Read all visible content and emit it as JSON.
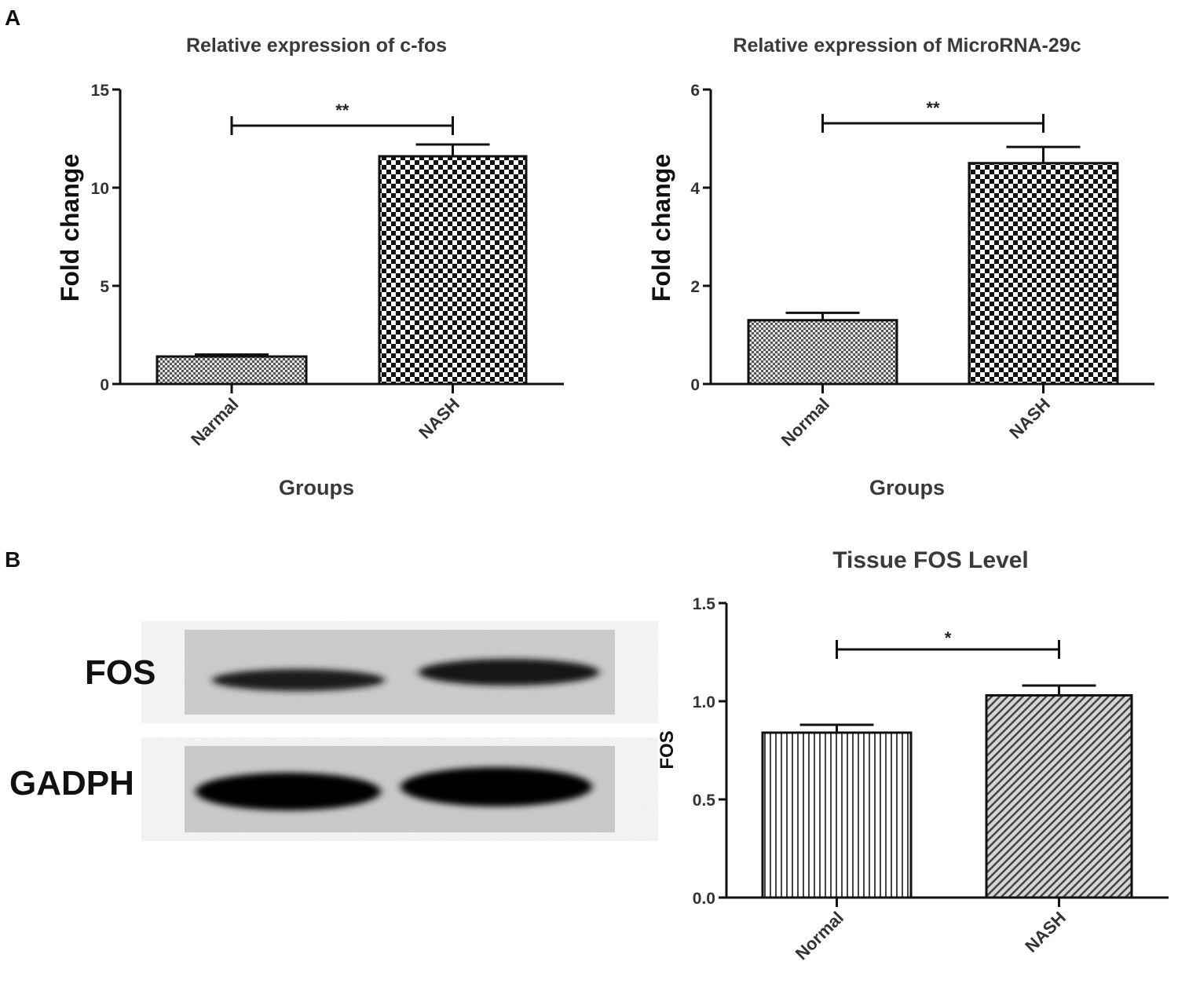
{
  "panels": {
    "a": "A",
    "b": "B"
  },
  "blot": {
    "labels": [
      "FOS",
      "GADPH"
    ]
  },
  "chart_data": [
    {
      "type": "bar",
      "title": "Relative expression of c-fos",
      "xlabel": "Groups",
      "ylabel": "Fold change",
      "categories": [
        "Narmal",
        "NASH"
      ],
      "values": [
        1.4,
        11.6
      ],
      "errors": [
        0.1,
        0.6
      ],
      "patterns": [
        "fine-check",
        "coarse-check"
      ],
      "ylim": [
        0,
        15
      ],
      "yticks": [
        "0",
        "5",
        "10",
        "15"
      ],
      "significance": "**"
    },
    {
      "type": "bar",
      "title": "Relative expression of MicroRNA-29c",
      "xlabel": "Groups",
      "ylabel": "Fold change",
      "categories": [
        "Normal",
        "NASH"
      ],
      "values": [
        1.3,
        4.5
      ],
      "errors": [
        0.15,
        0.33
      ],
      "patterns": [
        "fine-check",
        "coarse-check"
      ],
      "ylim": [
        0,
        6
      ],
      "yticks": [
        "0",
        "2",
        "4",
        "6"
      ],
      "significance": "**"
    },
    {
      "type": "bar",
      "title": "Tissue FOS Level",
      "xlabel": "",
      "ylabel": "FOS",
      "categories": [
        "Normal",
        "NASH"
      ],
      "values": [
        0.84,
        1.03
      ],
      "errors": [
        0.04,
        0.05
      ],
      "patterns": [
        "vertical-lines",
        "diagonal-lines"
      ],
      "ylim": [
        0,
        1.5
      ],
      "yticks": [
        "0.0",
        "0.5",
        "1.0",
        "1.5"
      ],
      "significance": "*"
    }
  ]
}
